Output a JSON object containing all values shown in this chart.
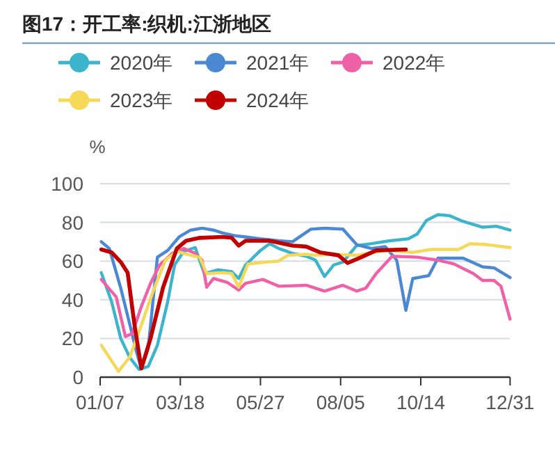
{
  "chart_data": {
    "type": "line",
    "title": "图17：开工率:织机:江浙地区",
    "ylabel": "%",
    "xlim": [
      "--01-07",
      "--12-31"
    ],
    "xticks": [
      {
        "value": "--01-07",
        "label": "01/07"
      },
      {
        "value": "--03-18",
        "label": "03/18"
      },
      {
        "value": "--05-27",
        "label": "05/27"
      },
      {
        "value": "--08-05",
        "label": "08/05"
      },
      {
        "value": "--10-14",
        "label": "10/14"
      },
      {
        "value": "--12-31",
        "label": "12/31"
      }
    ],
    "ylim": [
      0,
      100
    ],
    "yticks": [
      0,
      20,
      40,
      60,
      80,
      100
    ],
    "grid": "y",
    "legend": "top",
    "series": [
      {
        "name": "2020年",
        "color": "#3cb4cc",
        "x": [
          "--01-08",
          "--01-17",
          "--01-25",
          "--02-02",
          "--02-10",
          "--02-18",
          "--02-26",
          "--03-07",
          "--03-13",
          "--03-21",
          "--03-31",
          "--04-08",
          "--04-20",
          "--05-02",
          "--05-08",
          "--05-14",
          "--05-27",
          "--06-04",
          "--06-12",
          "--06-24",
          "--07-06",
          "--07-14",
          "--07-22",
          "--07-30",
          "--08-07",
          "--08-19",
          "--09-01",
          "--09-17",
          "--10-03",
          "--10-11",
          "--10-19",
          "--10-29",
          "--11-08",
          "--11-20",
          "--12-07",
          "--12-19",
          "--12-31"
        ],
        "values": [
          54,
          39,
          20,
          10,
          4,
          5.5,
          16.5,
          39,
          58,
          65,
          67,
          53.5,
          55.5,
          54.5,
          51,
          58,
          65.5,
          69,
          66.5,
          64,
          62.5,
          60.5,
          52,
          58,
          59.5,
          68,
          69,
          70.5,
          71.5,
          74,
          81,
          84,
          83.5,
          80.5,
          77.5,
          78,
          76
        ]
      },
      {
        "name": "2021年",
        "color": "#4a88d4",
        "x": [
          "--01-08",
          "--01-15",
          "--01-25",
          "--02-02",
          "--02-08",
          "--02-12",
          "--02-18",
          "--02-26",
          "--03-07",
          "--03-17",
          "--03-27",
          "--04-06",
          "--04-16",
          "--04-24",
          "--05-06",
          "--05-14",
          "--05-27",
          "--06-12",
          "--06-24",
          "--07-10",
          "--07-22",
          "--08-07",
          "--08-19",
          "--09-01",
          "--09-13",
          "--09-23",
          "--10-01",
          "--10-07",
          "--10-21",
          "--10-29",
          "--11-20",
          "--12-07",
          "--12-17",
          "--12-31"
        ],
        "values": [
          70,
          66.5,
          46,
          27,
          12.5,
          4.5,
          15,
          62,
          65.5,
          72.5,
          76,
          77,
          76,
          74.5,
          73,
          72.5,
          71.5,
          70.5,
          70,
          76.5,
          77,
          76.5,
          68.5,
          66.5,
          67.5,
          60.5,
          34.5,
          51,
          52.5,
          61.5,
          61.5,
          57,
          56.5,
          51.5
        ]
      },
      {
        "name": "2022年",
        "color": "#f060a8",
        "x": [
          "--01-08",
          "--01-21",
          "--01-29",
          "--02-04",
          "--02-12",
          "--02-20",
          "--02-28",
          "--03-11",
          "--03-21",
          "--03-31",
          "--04-06",
          "--04-10",
          "--04-16",
          "--04-28",
          "--05-08",
          "--05-14",
          "--05-29",
          "--06-12",
          "--07-06",
          "--07-22",
          "--08-07",
          "--08-19",
          "--08-27",
          "--09-05",
          "--09-19",
          "--10-11",
          "--10-29",
          "--11-12",
          "--11-29",
          "--12-07",
          "--12-17",
          "--12-23",
          "--12-31"
        ],
        "values": [
          50.5,
          41.5,
          21,
          22.5,
          36.5,
          48.5,
          58,
          64,
          66.5,
          64,
          60.5,
          46.5,
          51,
          49,
          45,
          48.5,
          50.5,
          47,
          47.5,
          44.5,
          47.5,
          44.5,
          46,
          53.5,
          62.5,
          62,
          60.5,
          58.5,
          53.5,
          50,
          50,
          47,
          30
        ]
      },
      {
        "name": "2023年",
        "color": "#f5d858",
        "x": [
          "--01-08",
          "--01-23",
          "--02-02",
          "--02-12",
          "--02-22",
          "--03-05",
          "--03-15",
          "--03-27",
          "--04-04",
          "--04-10",
          "--04-24",
          "--05-02",
          "--05-08",
          "--05-16",
          "--05-31",
          "--06-12",
          "--06-20",
          "--07-06",
          "--07-14",
          "--07-30",
          "--08-19",
          "--09-13",
          "--10-07",
          "--10-23",
          "--11-16",
          "--11-26",
          "--12-11",
          "--12-31"
        ],
        "values": [
          16.5,
          3,
          10.5,
          27,
          44,
          60.5,
          65,
          63,
          62,
          53.5,
          54,
          53.5,
          46.5,
          58.5,
          59.5,
          60,
          63,
          63.5,
          63,
          63.5,
          63,
          65.5,
          64.5,
          66,
          66,
          69,
          68.5,
          67
        ]
      },
      {
        "name": "2024年",
        "color": "#c00000",
        "x": [
          "--01-08",
          "--01-17",
          "--01-25",
          "--01-31",
          "--02-06",
          "--02-12",
          "--02-20",
          "--03-03",
          "--03-15",
          "--03-23",
          "--04-04",
          "--04-24",
          "--05-02",
          "--05-08",
          "--05-14",
          "--06-04",
          "--06-24",
          "--07-06",
          "--07-18",
          "--08-03",
          "--08-11",
          "--08-23",
          "--09-05",
          "--10-01"
        ],
        "values": [
          66,
          64.5,
          59.5,
          54,
          27,
          4.5,
          20,
          46.5,
          66.5,
          70.5,
          72,
          72.5,
          72,
          68,
          70.5,
          70.5,
          68,
          67.5,
          64.5,
          63,
          59,
          62,
          65.5,
          66
        ]
      }
    ]
  }
}
